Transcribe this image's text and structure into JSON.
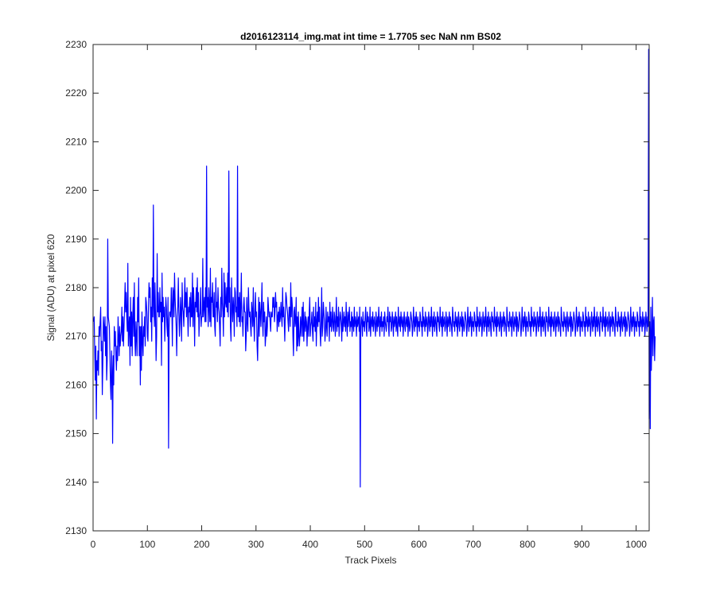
{
  "chart_data": {
    "type": "line",
    "title": "d2016123114_img.mat int time = 1.7705 sec  NaN nm BS02",
    "xlabel": "Track Pixels",
    "ylabel": "Signal (ADU) at pixel 620",
    "xlim": [
      0,
      1024
    ],
    "ylim": [
      2130,
      2230
    ],
    "xticks": [
      0,
      100,
      200,
      300,
      400,
      500,
      600,
      700,
      800,
      900,
      1000
    ],
    "yticks": [
      2130,
      2140,
      2150,
      2160,
      2170,
      2180,
      2190,
      2200,
      2210,
      2220,
      2230
    ],
    "grid": false,
    "series": [
      {
        "color": "#0000ff",
        "x_start": 1,
        "x_step": 1,
        "values": [
          2173,
          2174,
          2167,
          2161,
          2168,
          2153,
          2165,
          2163,
          2167,
          2162,
          2172,
          2170,
          2173,
          2176,
          2167,
          2169,
          2158,
          2165,
          2174,
          2172,
          2169,
          2174,
          2166,
          2172,
          2161,
          2165,
          2190,
          2174,
          2173,
          2172,
          2166,
          2160,
          2157,
          2167,
          2163,
          2148,
          2166,
          2160,
          2172,
          2168,
          2171,
          2166,
          2163,
          2168,
          2165,
          2174,
          2170,
          2166,
          2172,
          2168,
          2170,
          2171,
          2176,
          2169,
          2174,
          2168,
          2172,
          2176,
          2181,
          2175,
          2179,
          2174,
          2171,
          2185,
          2168,
          2172,
          2174,
          2164,
          2178,
          2168,
          2175,
          2166,
          2174,
          2178,
          2170,
          2181,
          2169,
          2166,
          2173,
          2170,
          2166,
          2178,
          2173,
          2182,
          2166,
          2172,
          2160,
          2172,
          2163,
          2175,
          2169,
          2166,
          2172,
          2170,
          2174,
          2168,
          2178,
          2177,
          2175,
          2170,
          2169,
          2176,
          2181,
          2178,
          2180,
          2173,
          2176,
          2169,
          2182,
          2174,
          2197,
          2176,
          2172,
          2181,
          2174,
          2165,
          2170,
          2187,
          2175,
          2179,
          2174,
          2174,
          2180,
          2175,
          2177,
          2164,
          2183,
          2173,
          2178,
          2174,
          2176,
          2169,
          2174,
          2178,
          2176,
          2172,
          2170,
          2178,
          2147,
          2172,
          2175,
          2175,
          2174,
          2180,
          2176,
          2168,
          2180,
          2179,
          2174,
          2183,
          2178,
          2175,
          2172,
          2166,
          2174,
          2176,
          2182,
          2175,
          2170,
          2173,
          2178,
          2175,
          2169,
          2181,
          2176,
          2175,
          2172,
          2176,
          2182,
          2176,
          2179,
          2174,
          2180,
          2175,
          2170,
          2176,
          2175,
          2178,
          2172,
          2179,
          2174,
          2174,
          2183,
          2172,
          2180,
          2176,
          2168,
          2177,
          2176,
          2180,
          2175,
          2182,
          2174,
          2179,
          2170,
          2174,
          2175,
          2180,
          2172,
          2174,
          2174,
          2186,
          2174,
          2176,
          2178,
          2173,
          2180,
          2173,
          2205,
          2176,
          2178,
          2172,
          2180,
          2176,
          2173,
          2184,
          2172,
          2178,
          2177,
          2181,
          2174,
          2174,
          2179,
          2172,
          2170,
          2182,
          2176,
          2177,
          2173,
          2180,
          2176,
          2175,
          2172,
          2168,
          2178,
          2174,
          2184,
          2177,
          2175,
          2170,
          2183,
          2174,
          2181,
          2177,
          2176,
          2180,
          2175,
          2183,
          2174,
          2204,
          2177,
          2180,
          2172,
          2169,
          2182,
          2176,
          2173,
          2178,
          2176,
          2170,
          2180,
          2179,
          2175,
          2176,
          2172,
          2205,
          2174,
          2178,
          2173,
          2179,
          2172,
          2176,
          2183,
          2173,
          2174,
          2170,
          2176,
          2178,
          2175,
          2175,
          2167,
          2170,
          2178,
          2173,
          2171,
          2180,
          2176,
          2174,
          2175,
          2172,
          2170,
          2177,
          2175,
          2172,
          2180,
          2173,
          2169,
          2175,
          2179,
          2174,
          2175,
          2168,
          2165,
          2172,
          2178,
          2170,
          2177,
          2175,
          2172,
          2176,
          2181,
          2173,
          2170,
          2177,
          2173,
          2175,
          2168,
          2170,
          2174,
          2170,
          2172,
          2178,
          2176,
          2174,
          2175,
          2173,
          2171,
          2175,
          2174,
          2174,
          2178,
          2176,
          2178,
          2173,
          2175,
          2179,
          2176,
          2177,
          2171,
          2174,
          2175,
          2172,
          2176,
          2173,
          2174,
          2177,
          2174,
          2172,
          2180,
          2174,
          2176,
          2173,
          2169,
          2175,
          2179,
          2178,
          2176,
          2175,
          2173,
          2171,
          2176,
          2176,
          2172,
          2181,
          2174,
          2178,
          2176,
          2170,
          2166,
          2175,
          2176,
          2172,
          2173,
          2178,
          2167,
          2174,
          2168,
          2175,
          2170,
          2168,
          2171,
          2174,
          2170,
          2173,
          2176,
          2170,
          2177,
          2169,
          2172,
          2175,
          2171,
          2174,
          2173,
          2168,
          2172,
          2174,
          2170,
          2175,
          2178,
          2170,
          2172,
          2173,
          2175,
          2171,
          2169,
          2176,
          2172,
          2174,
          2171,
          2177,
          2168,
          2173,
          2175,
          2172,
          2178,
          2173,
          2176,
          2171,
          2168,
          2173,
          2180,
          2170,
          2172,
          2177,
          2175,
          2173,
          2169,
          2171,
          2176,
          2172,
          2170,
          2175,
          2173,
          2174,
          2169,
          2177,
          2172,
          2175,
          2171,
          2173,
          2176,
          2172,
          2171,
          2175,
          2174,
          2170,
          2173,
          2178,
          2171,
          2174,
          2172,
          2176,
          2170,
          2173,
          2175,
          2174,
          2172,
          2169,
          2176,
          2171,
          2173,
          2175,
          2172,
          2174,
          2171,
          2177,
          2173,
          2170,
          2175,
          2172,
          2174,
          2176,
          2171,
          2173,
          2172,
          2175,
          2170,
          2174,
          2173,
          2171,
          2176,
          2172,
          2174,
          2173,
          2170,
          2175,
          2172,
          2173,
          2174,
          2171,
          2176,
          2139,
          2172,
          2174,
          2173,
          2170,
          2175,
          2172,
          2173,
          2171,
          2174,
          2176,
          2172,
          2170,
          2175,
          2173,
          2174,
          2171,
          2172,
          2176,
          2170,
          2173,
          2174,
          2172,
          2175,
          2171,
          2173,
          2174,
          2172,
          2170,
          2175,
          2173,
          2171,
          2174,
          2172,
          2176,
          2173,
          2170,
          2174,
          2172,
          2175,
          2171,
          2173,
          2172,
          2174,
          2170,
          2175,
          2173,
          2172,
          2171,
          2174,
          2173,
          2176,
          2172,
          2170,
          2175,
          2173,
          2174,
          2171,
          2172,
          2175,
          2173,
          2170,
          2174,
          2172,
          2173,
          2175,
          2171,
          2174,
          2172,
          2170,
          2176,
          2173,
          2172,
          2174,
          2171,
          2175,
          2173,
          2172,
          2174,
          2170,
          2173,
          2175,
          2172,
          2171,
          2174,
          2173,
          2172,
          2175,
          2170,
          2174,
          2173,
          2171,
          2172,
          2175,
          2174,
          2173,
          2170,
          2172,
          2176,
          2173,
          2171,
          2174,
          2172,
          2175,
          2173,
          2170,
          2174,
          2172,
          2173,
          2171,
          2175,
          2174,
          2172,
          2173,
          2170,
          2176,
          2172,
          2174,
          2173,
          2171,
          2175,
          2172,
          2173,
          2174,
          2170,
          2172,
          2175,
          2173,
          2171,
          2174,
          2172,
          2176,
          2173,
          2170,
          2174,
          2172,
          2175,
          2171,
          2173,
          2174,
          2172,
          2170,
          2175,
          2173,
          2174,
          2172,
          2171,
          2176,
          2173,
          2172,
          2174,
          2170,
          2175,
          2172,
          2173,
          2174,
          2171,
          2172,
          2175,
          2173,
          2170,
          2174,
          2172,
          2173,
          2175,
          2171,
          2174,
          2173,
          2172,
          2170,
          2176,
          2174,
          2172,
          2173,
          2171,
          2175,
          2173,
          2172,
          2174,
          2170,
          2173,
          2175,
          2172,
          2171,
          2174,
          2173,
          2172,
          2175,
          2170,
          2174,
          2173,
          2171,
          2172,
          2175,
          2174,
          2173,
          2170,
          2172,
          2176,
          2173,
          2171,
          2174,
          2172,
          2175,
          2173,
          2170,
          2174,
          2172,
          2173,
          2171,
          2175,
          2174,
          2172,
          2173,
          2170,
          2176,
          2172,
          2174,
          2173,
          2171,
          2175,
          2172,
          2173,
          2174,
          2170,
          2172,
          2175,
          2173,
          2171,
          2174,
          2172,
          2176,
          2173,
          2170,
          2174,
          2172,
          2175,
          2171,
          2173,
          2174,
          2172,
          2170,
          2175,
          2173,
          2174,
          2172,
          2171,
          2176,
          2173,
          2172,
          2174,
          2170,
          2175,
          2172,
          2173,
          2174,
          2171,
          2172,
          2175,
          2173,
          2170,
          2174,
          2172,
          2173,
          2175,
          2171,
          2174,
          2173,
          2172,
          2170,
          2176,
          2174,
          2172,
          2173,
          2171,
          2175,
          2173,
          2172,
          2174,
          2170,
          2173,
          2175,
          2172,
          2171,
          2174,
          2173,
          2172,
          2175,
          2170,
          2174,
          2173,
          2171,
          2172,
          2175,
          2174,
          2173,
          2170,
          2172,
          2176,
          2173,
          2171,
          2174,
          2172,
          2175,
          2173,
          2170,
          2174,
          2172,
          2173,
          2171,
          2175,
          2174,
          2172,
          2173,
          2170,
          2176,
          2172,
          2174,
          2173,
          2171,
          2175,
          2172,
          2173,
          2174,
          2170,
          2172,
          2175,
          2173,
          2171,
          2174,
          2172,
          2176,
          2173,
          2170,
          2174,
          2172,
          2175,
          2171,
          2173,
          2174,
          2172,
          2170,
          2175,
          2173,
          2174,
          2172,
          2171,
          2176,
          2173,
          2172,
          2174,
          2170,
          2175,
          2172,
          2173,
          2174,
          2171,
          2172,
          2175,
          2173,
          2170,
          2174,
          2172,
          2173,
          2175,
          2171,
          2174,
          2173,
          2172,
          2170,
          2176,
          2174,
          2172,
          2173,
          2171,
          2175,
          2173,
          2172,
          2174,
          2170,
          2173,
          2175,
          2172,
          2171,
          2174,
          2173,
          2172,
          2175,
          2170,
          2174,
          2173,
          2171,
          2172,
          2175,
          2174,
          2173,
          2170,
          2172,
          2176,
          2173,
          2171,
          2174,
          2172,
          2175,
          2173,
          2170,
          2174,
          2172,
          2173,
          2171,
          2175,
          2174,
          2172,
          2173,
          2170,
          2176,
          2172,
          2174,
          2173,
          2171,
          2175,
          2172,
          2173,
          2174,
          2170,
          2172,
          2175,
          2173,
          2171,
          2174,
          2172,
          2176,
          2173,
          2170,
          2174,
          2172,
          2175,
          2171,
          2173,
          2174,
          2172,
          2170,
          2175,
          2173,
          2174,
          2172,
          2171,
          2176,
          2173,
          2172,
          2174,
          2170,
          2175,
          2172,
          2173,
          2174,
          2171,
          2172,
          2175,
          2173,
          2170,
          2174,
          2172,
          2173,
          2175,
          2171,
          2174,
          2173,
          2172,
          2170,
          2176,
          2174,
          2172,
          2173,
          2171,
          2175,
          2173,
          2172,
          2174,
          2170,
          2173,
          2175,
          2172,
          2171,
          2174,
          2173,
          2172,
          2175,
          2170,
          2174,
          2173,
          2171,
          2172,
          2175,
          2174,
          2173,
          2170,
          2172,
          2176,
          2173,
          2171,
          2174,
          2172,
          2175,
          2173,
          2170,
          2174,
          2172,
          2173,
          2171,
          2175,
          2174,
          2172,
          2173,
          2170,
          2176,
          2172,
          2174,
          2173,
          2171,
          2175,
          2172,
          2173,
          2174,
          2170,
          2172,
          2175,
          2173,
          2171,
          2174,
          2172,
          2229,
          2153,
          2173,
          2151,
          2176,
          2163,
          2170,
          2178,
          2166,
          2173,
          2174,
          2165,
          2170
        ]
      }
    ]
  }
}
